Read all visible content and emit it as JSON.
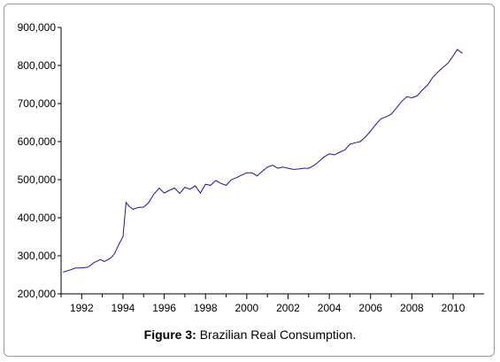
{
  "caption": {
    "label": "Figure 3:",
    "text": "Brazilian Real Consumption."
  },
  "colors": {
    "line": "#1a1a8c",
    "axis": "#000000",
    "frame": "#9a9a9a"
  },
  "chart_data": {
    "type": "line",
    "title": "",
    "xlabel": "",
    "ylabel": "",
    "grid": false,
    "legend": "none",
    "xlim": [
      1991.0,
      2011.5
    ],
    "ylim": [
      200000,
      900000
    ],
    "x_ticks": [
      1992,
      1994,
      1996,
      1998,
      2000,
      2002,
      2004,
      2006,
      2008,
      2010
    ],
    "x_tick_labels": [
      "1992",
      "1994",
      "1996",
      "1998",
      "2000",
      "2002",
      "2004",
      "2006",
      "2008",
      "2010"
    ],
    "y_ticks": [
      200000,
      300000,
      400000,
      500000,
      600000,
      700000,
      800000,
      900000
    ],
    "y_tick_labels": [
      "200,000",
      "300,000",
      "400,000",
      "500,000",
      "600,000",
      "700,000",
      "800,000",
      "900,000"
    ],
    "series": [
      {
        "x": [
          1991.1,
          1991.4,
          1991.7,
          1992.0,
          1992.3,
          1992.6,
          1992.9,
          1993.1,
          1993.4,
          1993.6,
          1993.8,
          1994.0,
          1994.15,
          1994.3,
          1994.5,
          1994.75,
          1995.0,
          1995.25,
          1995.5,
          1995.75,
          1996.0,
          1996.25,
          1996.5,
          1996.75,
          1997.0,
          1997.25,
          1997.5,
          1997.75,
          1998.0,
          1998.25,
          1998.5,
          1998.75,
          1999.0,
          1999.25,
          1999.5,
          1999.75,
          2000.0,
          2000.25,
          2000.5,
          2000.75,
          2001.0,
          2001.25,
          2001.5,
          2001.75,
          2002.0,
          2002.25,
          2002.5,
          2002.75,
          2003.0,
          2003.25,
          2003.5,
          2003.75,
          2004.0,
          2004.25,
          2004.5,
          2004.75,
          2005.0,
          2005.25,
          2005.5,
          2005.75,
          2006.0,
          2006.25,
          2006.5,
          2006.75,
          2007.0,
          2007.25,
          2007.5,
          2007.75,
          2008.0,
          2008.25,
          2008.5,
          2008.75,
          2009.0,
          2009.25,
          2009.5,
          2009.75,
          2010.0,
          2010.2,
          2010.45
        ],
        "values": [
          257000,
          262000,
          268000,
          268000,
          270000,
          282000,
          290000,
          285000,
          294000,
          306000,
          330000,
          350000,
          440000,
          430000,
          422000,
          427000,
          428000,
          440000,
          462000,
          478000,
          465000,
          472000,
          478000,
          464000,
          480000,
          475000,
          484000,
          465000,
          488000,
          485000,
          498000,
          490000,
          485000,
          500000,
          505000,
          512000,
          518000,
          518000,
          510000,
          522000,
          533000,
          538000,
          530000,
          533000,
          530000,
          527000,
          528000,
          530000,
          530000,
          537000,
          548000,
          560000,
          568000,
          565000,
          572000,
          578000,
          593000,
          597000,
          600000,
          612000,
          628000,
          645000,
          660000,
          665000,
          672000,
          688000,
          705000,
          718000,
          715000,
          720000,
          735000,
          748000,
          768000,
          782000,
          795000,
          806000,
          825000,
          842000,
          832000
        ]
      }
    ]
  }
}
